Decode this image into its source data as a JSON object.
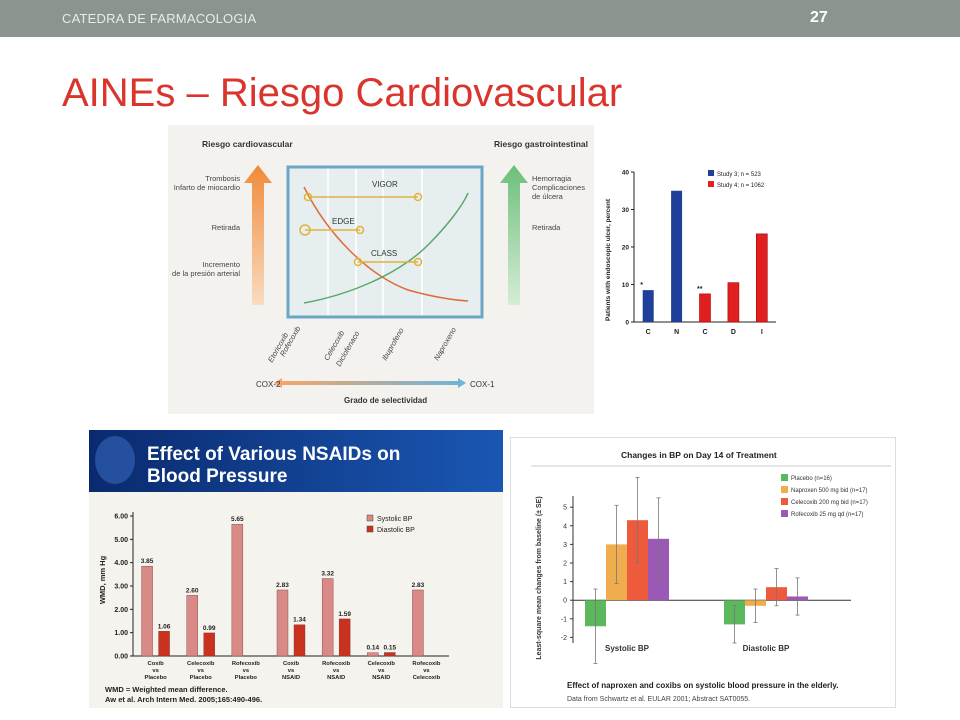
{
  "header": {
    "course": "CATEDRA DE FARMACOLOGIA",
    "page_number": "27"
  },
  "slide": {
    "title": "AINEs – Riesgo Cardiovascular"
  },
  "colors": {
    "title": "#d9352c",
    "topbar": "#8b958d"
  },
  "risk_diagram": {
    "left_title": "Riesgo cardiovascular",
    "right_title": "Riesgo gastrointestinal",
    "left_levels": [
      "Trombosis",
      "Infarto de miocardio",
      "Retirada",
      "Incremento",
      "de la presión arterial"
    ],
    "right_levels": [
      "Hemorragia",
      "Complicaciones",
      "de úlcera",
      "Retirada"
    ],
    "trials": [
      "VIGOR",
      "EDGE",
      "CLASS"
    ],
    "drugs": [
      "Etoricoxib",
      "Rofecoxib",
      "Celecoxib",
      "Diclofenaco",
      "Ibuprofeno",
      "Naproxeno"
    ],
    "axis_left": "COX-2",
    "axis_right": "COX-1",
    "axis_label": "Grado de selectividad"
  },
  "ulcer_chart": {
    "chart_data": {
      "type": "bar",
      "categories": [
        "C",
        "N",
        "C",
        "D",
        "I"
      ],
      "series": [
        {
          "name": "Study 3; n = 523",
          "values": [
            8.5,
            35,
            null,
            null,
            null
          ]
        },
        {
          "name": "Study 4; n = 1062",
          "values": [
            null,
            null,
            7.5,
            10.5,
            23.5
          ]
        }
      ],
      "annotations": [
        "*",
        "",
        "**",
        "",
        ""
      ],
      "ylabel": "Patients with endoscopic ulcer, percent",
      "yticks": [
        0,
        10,
        20,
        30,
        40
      ],
      "ylim": [
        0,
        40
      ],
      "colors": [
        "#1f3f9a",
        "#e02020"
      ]
    }
  },
  "nsaid_bp_chart": {
    "title_line1": "Effect of Various NSAIDs on",
    "title_line2": "Blood Pressure",
    "chart_data": {
      "type": "bar",
      "categories": [
        "Coxib vs Placebo",
        "Celecoxib vs Placebo",
        "Rofecoxib vs Placebo",
        "Coxib vs NSAID",
        "Rofecoxib vs NSAID",
        "Celecoxib vs NSAID",
        "Rofecoxib vs Celecoxib"
      ],
      "category_lines": [
        [
          "Coxib",
          "vs",
          "Placebo"
        ],
        [
          "Celecoxib",
          "vs",
          "Placebo"
        ],
        [
          "Rofecoxib",
          "vs",
          "Placebo"
        ],
        [
          "Coxib",
          "vs",
          "NSAID"
        ],
        [
          "Rofecoxib",
          "vs",
          "NSAID"
        ],
        [
          "Celecoxib",
          "vs",
          "NSAID"
        ],
        [
          "Rofecoxib",
          "vs",
          "Celecoxib"
        ]
      ],
      "series": [
        {
          "name": "Systolic BP",
          "values": [
            3.85,
            2.6,
            5.65,
            2.83,
            3.32,
            0.14,
            2.83
          ],
          "labels": [
            "3.85",
            "2.60",
            "5.65",
            "2.83",
            "3.32",
            "0.14",
            "2.83"
          ]
        },
        {
          "name": "Diastolic BP",
          "values": [
            1.06,
            0.99,
            null,
            1.34,
            1.59,
            0.15,
            null
          ],
          "labels": [
            "1.06",
            "0.99",
            "",
            "1.34",
            "1.59",
            "0.15",
            ""
          ]
        }
      ],
      "ylabel": "WMD, mm Hg",
      "yticks": [
        "0.00",
        "1.00",
        "2.00",
        "3.00",
        "4.00",
        "5.00",
        "6.00"
      ],
      "ylim": [
        0,
        6
      ],
      "colors": [
        "#d98a86",
        "#c8321e"
      ]
    },
    "footnote1": "WMD = Weighted mean difference.",
    "footnote2": "Aw et al. Arch Intern Med. 2005;165:490-496."
  },
  "bp_change_chart": {
    "chart_data": {
      "type": "bar",
      "title": "Changes in BP on Day 14 of Treatment",
      "categories": [
        "Systolic BP",
        "Diastolic BP"
      ],
      "series": [
        {
          "name": "Placebo (n=16)",
          "values": [
            -1.4,
            -1.3
          ],
          "error": [
            2.0,
            1.0
          ]
        },
        {
          "name": "Naproxen 500 mg bid (n=17)",
          "values": [
            3.0,
            -0.3
          ],
          "error": [
            2.1,
            0.9
          ]
        },
        {
          "name": "Celecoxib 200 mg bid (n=17)",
          "values": [
            4.3,
            0.7
          ],
          "error": [
            2.3,
            1.0
          ]
        },
        {
          "name": "Rofecoxib 25 mg qd (n=17)",
          "values": [
            3.3,
            0.2
          ],
          "error": [
            2.2,
            1.0
          ]
        }
      ],
      "ylabel": "Least-square mean changes from baseline (± SE)",
      "yticks": [
        -2,
        -1,
        0,
        1,
        2,
        3,
        4,
        5
      ],
      "ylim": [
        -2.3,
        5.6
      ],
      "colors": [
        "#5cb85c",
        "#f0ad4e",
        "#ee5a3c",
        "#9b59b6"
      ]
    },
    "caption": "Effect of naproxen and coxibs on systolic blood pressure in the elderly.",
    "source": "Data from Schwartz et al. EULAR 2001; Abstract SAT0055."
  }
}
